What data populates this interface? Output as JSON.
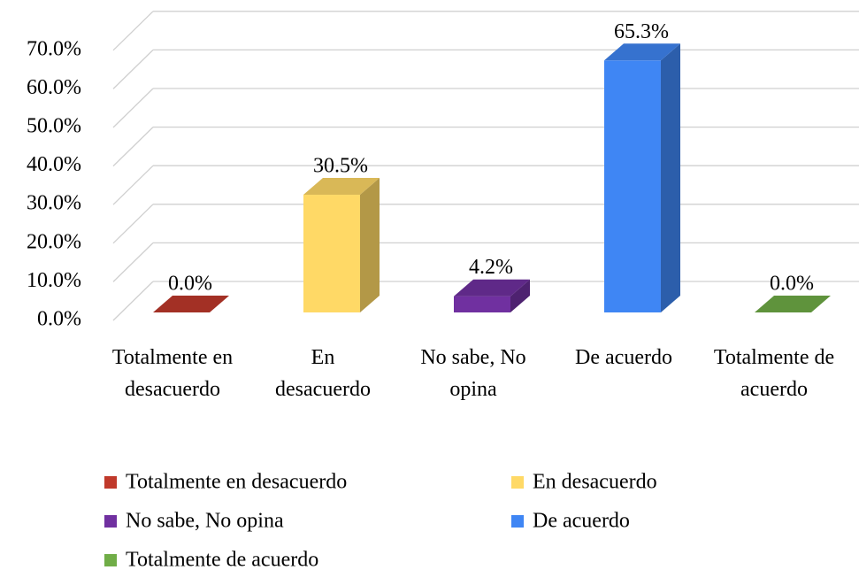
{
  "chart_data": {
    "type": "bar3d",
    "categories": [
      "Totalmente en desacuerdo",
      "En desacuerdo",
      "No sabe, No opina",
      "De acuerdo",
      "Totalmente de acuerdo"
    ],
    "values": [
      0,
      30.5,
      4.2,
      65.3,
      0
    ],
    "value_labels": [
      "0.0%",
      "30.5%",
      "4.2%",
      "65.3%",
      "0.0%"
    ],
    "colors": [
      "#c0392b",
      "#ffd966",
      "#7030a0",
      "#3f86f4",
      "#70ad47"
    ],
    "ylim": [
      0,
      70
    ],
    "yticks": [
      {
        "value": 0,
        "label": "0.0%"
      },
      {
        "value": 10,
        "label": "10.0%"
      },
      {
        "value": 20,
        "label": "20.0%"
      },
      {
        "value": 30,
        "label": "30.0%"
      },
      {
        "value": 40,
        "label": "40.0%"
      },
      {
        "value": 50,
        "label": "50.0%"
      },
      {
        "value": 60,
        "label": "60.0%"
      },
      {
        "value": 70,
        "label": "70.0%"
      }
    ],
    "grid": true,
    "legend": "bottom"
  }
}
